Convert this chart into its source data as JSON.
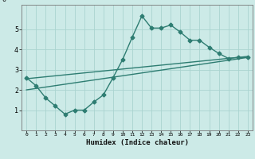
{
  "title": "",
  "xlabel": "Humidex (Indice chaleur)",
  "bg_color": "#cceae7",
  "line_color": "#2e7d72",
  "grid_color": "#aad4d0",
  "xlim": [
    -0.5,
    23.5
  ],
  "ylim": [
    0,
    6.2
  ],
  "xticks": [
    0,
    1,
    2,
    3,
    4,
    5,
    6,
    7,
    8,
    9,
    10,
    11,
    12,
    13,
    14,
    15,
    16,
    17,
    18,
    19,
    20,
    21,
    22,
    23
  ],
  "yticks": [
    1,
    2,
    3,
    4,
    5
  ],
  "line1_x": [
    0,
    1,
    2,
    3,
    4,
    5,
    6,
    7,
    8,
    9,
    10,
    11,
    12,
    13,
    14,
    15,
    16,
    17,
    18,
    19,
    20,
    21,
    22,
    23
  ],
  "line1_y": [
    2.6,
    2.2,
    1.6,
    1.2,
    0.8,
    1.0,
    1.0,
    1.4,
    1.75,
    2.6,
    3.5,
    4.6,
    5.65,
    5.05,
    5.05,
    5.2,
    4.85,
    4.45,
    4.45,
    4.1,
    3.8,
    3.55,
    3.6,
    3.6
  ],
  "line2_x": [
    0,
    23
  ],
  "line2_y": [
    2.0,
    3.6
  ],
  "line3_x": [
    0,
    23
  ],
  "line3_y": [
    2.55,
    3.65
  ],
  "markersize": 2.5,
  "linewidth": 1.0
}
